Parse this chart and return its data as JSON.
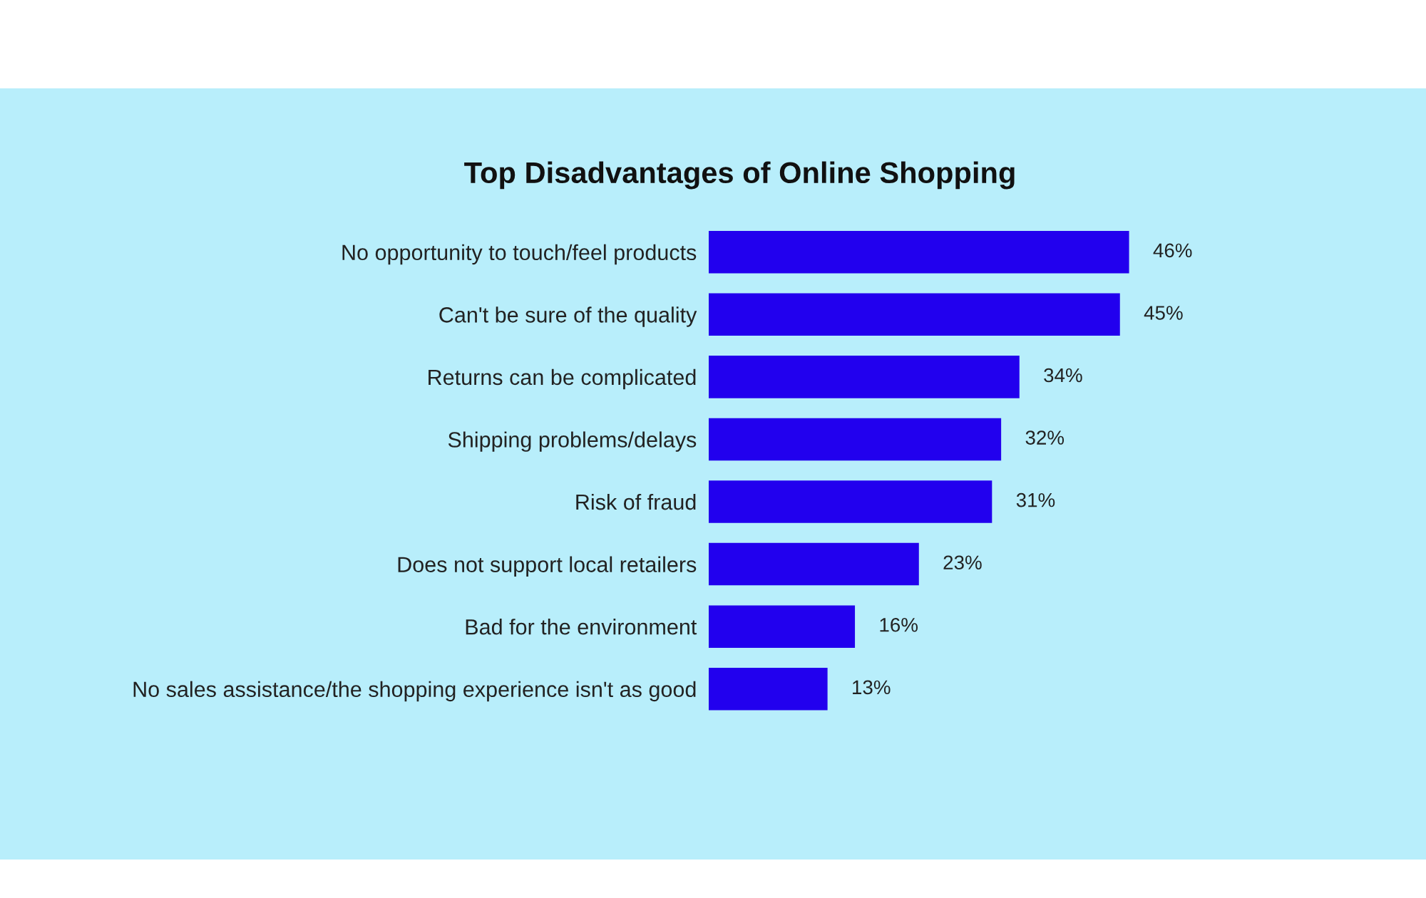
{
  "chart_data": {
    "type": "bar",
    "orientation": "horizontal",
    "title": "Top Disadvantages of Online Shopping",
    "categories": [
      "No opportunity to touch/feel products",
      "Can't be sure of the quality",
      "Returns can be complicated",
      "Shipping problems/delays",
      "Risk of fraud",
      "Does not support local retailers",
      "Bad for the environment",
      "No sales assistance/the shopping experience isn't as good"
    ],
    "values": [
      46,
      45,
      34,
      32,
      31,
      23,
      16,
      13
    ],
    "value_labels": [
      "46%",
      "45%",
      "34%",
      "32%",
      "31%",
      "23%",
      "16%",
      "13%"
    ],
    "color": "#2200ee",
    "grid": false,
    "legend": false
  }
}
